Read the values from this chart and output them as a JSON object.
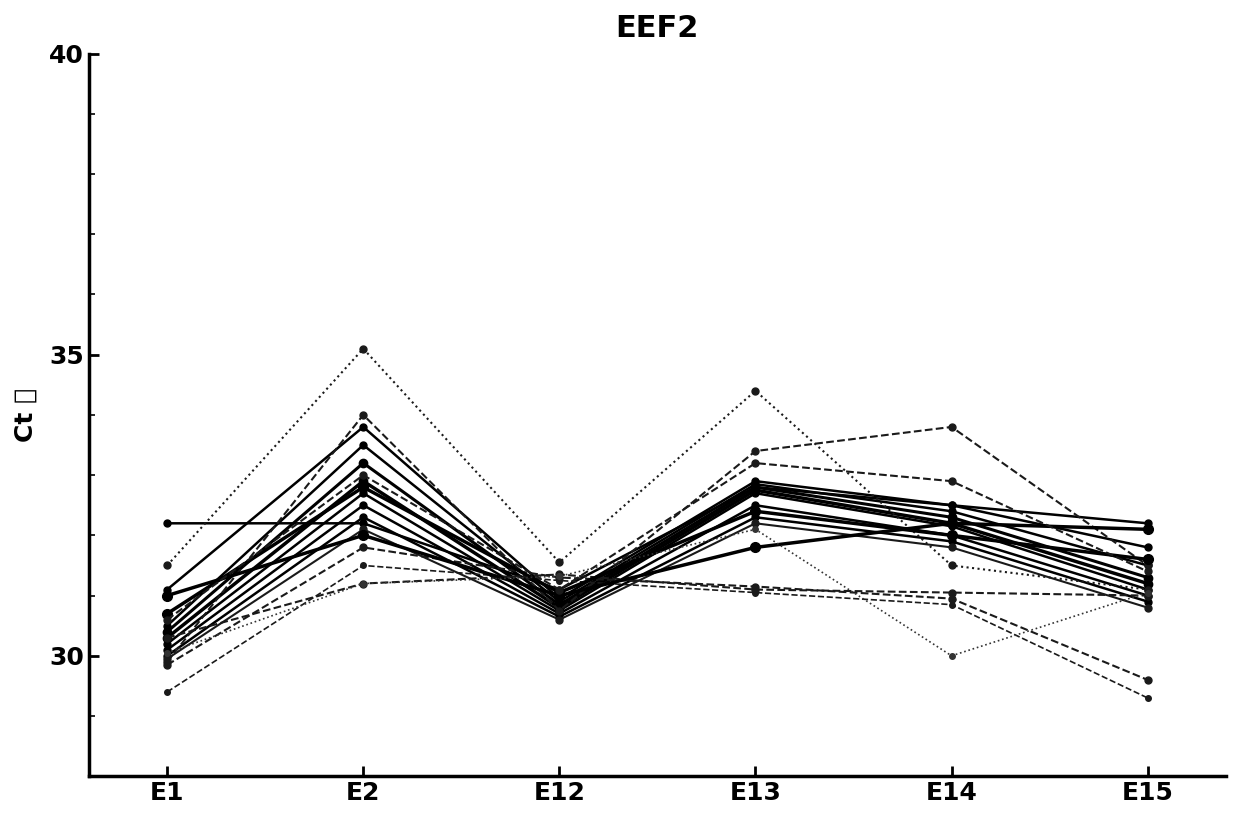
{
  "title": "EEF2",
  "ylabel": "Ct 値",
  "x_labels": [
    "E1",
    "E2",
    "E12",
    "E13",
    "E14",
    "E15"
  ],
  "ylim": [
    28.0,
    40.0
  ],
  "yticks": [
    30,
    35,
    40
  ],
  "background_color": "#ffffff",
  "series": [
    {
      "values": [
        32.2,
        32.2,
        31.1,
        32.8,
        32.5,
        32.2
      ],
      "style": "solid",
      "marker": "o",
      "lw": 1.8,
      "color": "#000000",
      "ms": 5
    },
    {
      "values": [
        31.1,
        33.8,
        30.95,
        32.9,
        32.5,
        31.8
      ],
      "style": "solid",
      "marker": "o",
      "lw": 1.8,
      "color": "#000000",
      "ms": 5
    },
    {
      "values": [
        30.5,
        33.5,
        30.9,
        32.85,
        32.4,
        31.5
      ],
      "style": "solid",
      "marker": "o",
      "lw": 1.8,
      "color": "#000000",
      "ms": 5
    },
    {
      "values": [
        30.4,
        33.2,
        30.85,
        32.8,
        32.3,
        31.3
      ],
      "style": "solid",
      "marker": "o",
      "lw": 2.2,
      "color": "#000000",
      "ms": 6
    },
    {
      "values": [
        30.3,
        32.9,
        30.8,
        32.75,
        32.2,
        31.2
      ],
      "style": "solid",
      "marker": "o",
      "lw": 2.5,
      "color": "#000000",
      "ms": 6
    },
    {
      "values": [
        30.2,
        32.7,
        30.75,
        32.7,
        32.15,
        31.1
      ],
      "style": "solid",
      "marker": "o",
      "lw": 1.8,
      "color": "#000000",
      "ms": 5
    },
    {
      "values": [
        30.1,
        32.5,
        30.7,
        32.5,
        32.0,
        31.0
      ],
      "style": "solid",
      "marker": "o",
      "lw": 1.8,
      "color": "#000000",
      "ms": 5
    },
    {
      "values": [
        30.0,
        32.3,
        30.65,
        32.3,
        31.9,
        30.9
      ],
      "style": "solid",
      "marker": "o",
      "lw": 1.8,
      "color": "#000000",
      "ms": 5
    },
    {
      "values": [
        29.95,
        32.1,
        30.6,
        32.2,
        31.8,
        30.8
      ],
      "style": "solid",
      "marker": "o",
      "lw": 1.5,
      "color": "#1a1a1a",
      "ms": 5
    },
    {
      "values": [
        29.9,
        34.0,
        30.75,
        33.4,
        33.8,
        31.5
      ],
      "style": "dashed",
      "marker": "o",
      "lw": 1.5,
      "color": "#1a1a1a",
      "ms": 5
    },
    {
      "values": [
        31.5,
        35.1,
        31.55,
        34.4,
        31.5,
        31.1
      ],
      "style": "dotted",
      "marker": "o",
      "lw": 1.5,
      "color": "#1a1a1a",
      "ms": 5
    },
    {
      "values": [
        30.3,
        31.2,
        31.35,
        31.1,
        31.05,
        31.0
      ],
      "style": "dashed",
      "marker": "o",
      "lw": 1.5,
      "color": "#1a1a1a",
      "ms": 5
    },
    {
      "values": [
        29.85,
        31.8,
        31.3,
        31.15,
        30.95,
        29.6
      ],
      "style": "dashed",
      "marker": "o",
      "lw": 1.5,
      "color": "#1a1a1a",
      "ms": 5
    },
    {
      "values": [
        29.4,
        31.5,
        31.25,
        31.05,
        30.85,
        29.3
      ],
      "style": "dashed",
      "marker": "o",
      "lw": 1.2,
      "color": "#1a1a1a",
      "ms": 4
    },
    {
      "values": [
        31.0,
        32.0,
        31.0,
        31.8,
        32.2,
        32.1
      ],
      "style": "solid",
      "marker": "o",
      "lw": 2.5,
      "color": "#000000",
      "ms": 7
    },
    {
      "values": [
        30.7,
        32.8,
        31.05,
        32.4,
        32.0,
        31.6
      ],
      "style": "solid",
      "marker": "o",
      "lw": 2.5,
      "color": "#000000",
      "ms": 7
    },
    {
      "values": [
        30.6,
        33.0,
        31.1,
        33.2,
        32.9,
        31.4
      ],
      "style": "dashed",
      "marker": "o",
      "lw": 1.5,
      "color": "#1a1a1a",
      "ms": 5
    },
    {
      "values": [
        30.05,
        31.2,
        31.32,
        32.1,
        30.0,
        31.05
      ],
      "style": "dotted",
      "marker": "o",
      "lw": 1.2,
      "color": "#333333",
      "ms": 4
    }
  ]
}
